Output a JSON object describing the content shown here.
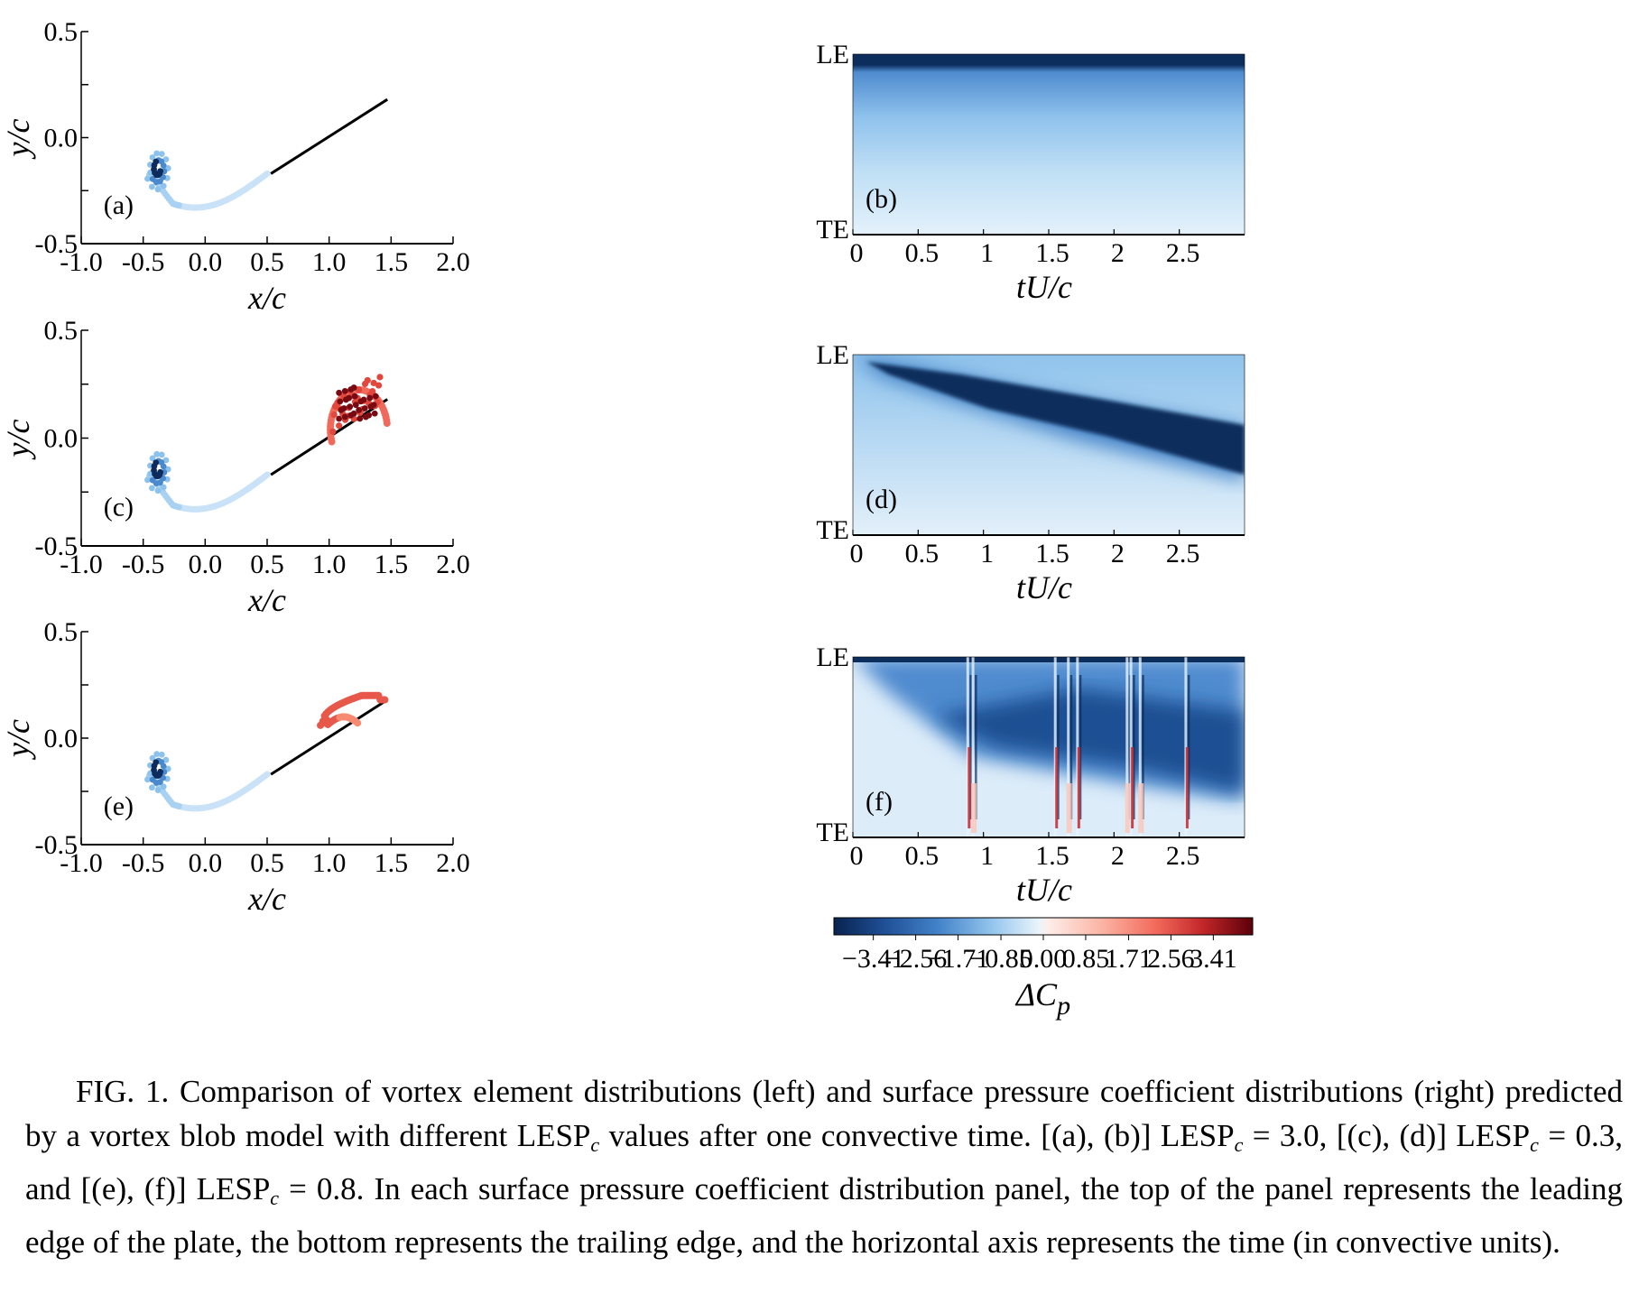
{
  "figure": {
    "caption": {
      "lead": "FIG. 1. Comparison of vortex element distributions (left) and surface pressure coefficient distributions (right) predicted by a vortex blob model with different ",
      "lesp": "LESP",
      "sub": "c",
      "part2": " values after one convective time. [(a), (b)] ",
      "part3": " = 3.0, [(c), (d)] ",
      "part4": " = 0.3, and [(e), (f)] ",
      "part5": " = 0.8. In each surface pressure coefficient distribution panel, the top of the panel represents the leading edge of the plate, the bottom represents the trailing edge, and the horizontal axis represents the time (in convective units)."
    }
  },
  "chart_data": [
    {
      "type": "scatter",
      "panel": "(a)",
      "lesp_c": 3.0,
      "xlabel": "x/c",
      "ylabel": "y/c",
      "xlim": [
        -1.0,
        2.0
      ],
      "ylim": [
        -0.5,
        0.5
      ],
      "xticks": [
        "-1.0",
        "-0.5",
        "0.0",
        "0.5",
        "1.0",
        "1.5",
        "2.0"
      ],
      "yticks": [
        "-0.5",
        "0.0",
        "0.5"
      ],
      "plate": {
        "x": [
          0.53,
          1.47
        ],
        "y": [
          -0.17,
          0.18
        ]
      },
      "te_wake": {
        "spiral_center": [
          -0.38,
          -0.15
        ],
        "tail_end": [
          0.5,
          -0.17
        ],
        "color": "light-blue"
      },
      "le_vortex": null
    },
    {
      "type": "scatter",
      "panel": "(c)",
      "lesp_c": 0.3,
      "xlabel": "x/c",
      "ylabel": "y/c",
      "xlim": [
        -1.0,
        2.0
      ],
      "ylim": [
        -0.5,
        0.5
      ],
      "xticks": [
        "-1.0",
        "-0.5",
        "0.0",
        "0.5",
        "1.0",
        "1.5",
        "2.0"
      ],
      "yticks": [
        "-0.5",
        "0.0",
        "0.5"
      ],
      "plate": {
        "x": [
          0.53,
          1.47
        ],
        "y": [
          -0.17,
          0.18
        ]
      },
      "te_wake": {
        "spiral_center": [
          -0.38,
          -0.15
        ],
        "tail_end": [
          0.5,
          -0.17
        ],
        "color": "light-blue"
      },
      "le_vortex": {
        "type": "dome",
        "x_range": [
          1.0,
          1.47
        ],
        "y_top": 0.27,
        "color": "red"
      }
    },
    {
      "type": "scatter",
      "panel": "(e)",
      "lesp_c": 0.8,
      "xlabel": "x/c",
      "ylabel": "y/c",
      "xlim": [
        -1.0,
        2.0
      ],
      "ylim": [
        -0.5,
        0.5
      ],
      "xticks": [
        "-1.0",
        "-0.5",
        "0.0",
        "0.5",
        "1.0",
        "1.5",
        "2.0"
      ],
      "yticks": [
        "-0.5",
        "0.0",
        "0.5"
      ],
      "plate": {
        "x": [
          0.53,
          1.47
        ],
        "y": [
          -0.17,
          0.18
        ]
      },
      "te_wake": {
        "spiral_center": [
          -0.38,
          -0.15
        ],
        "tail_end": [
          0.5,
          -0.17
        ],
        "color": "light-blue"
      },
      "le_vortex": {
        "type": "sheets",
        "x_range": [
          0.93,
          1.45
        ],
        "y_top": 0.2,
        "color": "red"
      }
    },
    {
      "type": "heatmap",
      "panel": "(b)",
      "xlabel": "tU/c",
      "xlim": [
        0,
        3.0
      ],
      "xticks": [
        "0",
        "0.5",
        "1",
        "1.5",
        "2",
        "2.5"
      ],
      "ylabels": {
        "top": "LE",
        "bottom": "TE"
      },
      "description": "Strong negative band along LE; smooth light-blue elsewhere"
    },
    {
      "type": "heatmap",
      "panel": "(d)",
      "xlabel": "tU/c",
      "xlim": [
        0,
        3.0
      ],
      "xticks": [
        "0",
        "0.5",
        "1",
        "1.5",
        "2",
        "2.5"
      ],
      "ylabels": {
        "top": "LE",
        "bottom": "TE"
      },
      "description": "Dark-blue band moving from LE toward TE with time"
    },
    {
      "type": "heatmap",
      "panel": "(f)",
      "xlabel": "tU/c",
      "xlim": [
        0,
        3.0
      ],
      "xticks": [
        "0",
        "0.5",
        "1",
        "1.5",
        "2",
        "2.5"
      ],
      "ylabels": {
        "top": "LE",
        "bottom": "TE"
      },
      "spike_times": [
        0.88,
        0.92,
        1.55,
        1.65,
        1.72,
        2.1,
        2.13,
        2.2,
        2.55
      ],
      "description": "Dark-blue band with vertical streaks and red spikes"
    },
    {
      "type": "colorbar",
      "label": "ΔCp",
      "ticks": [
        "−3.41",
        "−2.56",
        "−1.71",
        "−0.85",
        "0.00",
        "0.85",
        "1.71",
        "2.56",
        "3.41"
      ],
      "tick_values": [
        -3.41,
        -2.56,
        -1.71,
        -0.85,
        0.0,
        0.85,
        1.71,
        2.56,
        3.41
      ],
      "range": [
        -4.2,
        4.2
      ],
      "colormap": "RdBu_r",
      "colors": {
        "min": "#0a2a5a",
        "mid": "#f5f8fb",
        "max": "#5c0009"
      }
    }
  ]
}
